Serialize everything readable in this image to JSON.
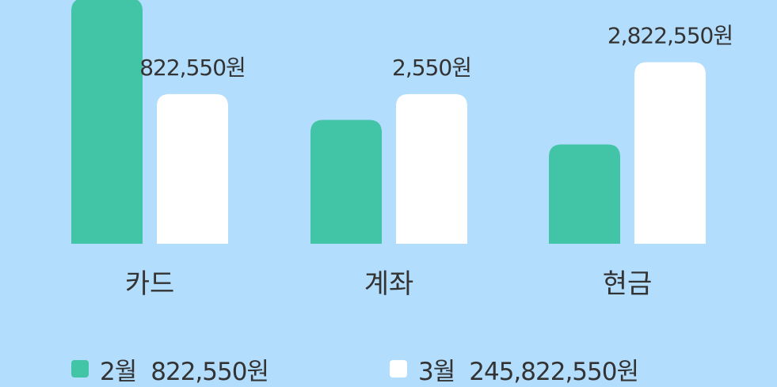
{
  "colors": {
    "background": "#b3ddfd",
    "feb": "#42c4a7",
    "mar": "#ffffff",
    "text": "#333333"
  },
  "chart_data": {
    "type": "bar",
    "categories": [
      "카드",
      "계좌",
      "현금"
    ],
    "series": [
      {
        "name": "2월",
        "color": "#42c4a7",
        "bar_levels": [
          1.0,
          0.505,
          0.405
        ],
        "value_labels": [
          "",
          "",
          ""
        ]
      },
      {
        "name": "3월",
        "color": "#ffffff",
        "bar_levels": [
          0.61,
          0.61,
          0.74
        ],
        "value_labels": [
          "822,550원",
          "2,550원",
          "2,822,550원"
        ]
      }
    ]
  },
  "legend": [
    {
      "label": "2월",
      "total": "822,550원"
    },
    {
      "label": "3월",
      "total": "245,822,550원"
    }
  ]
}
